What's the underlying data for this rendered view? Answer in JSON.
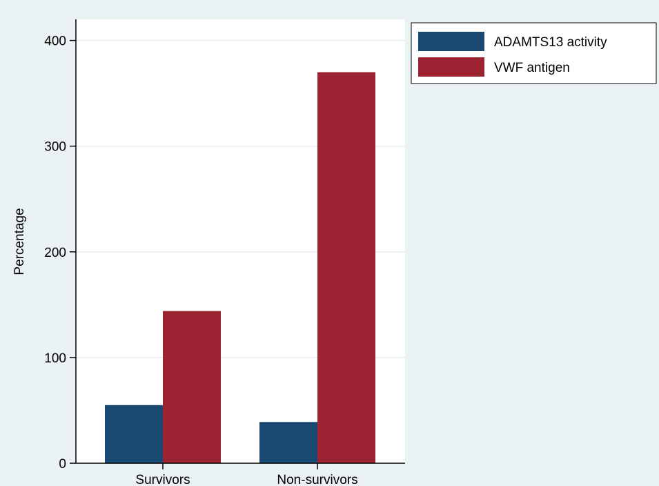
{
  "chart_data": {
    "type": "bar",
    "categories": [
      "Survivors",
      "Non-survivors"
    ],
    "series": [
      {
        "name": "ADAMTS13 activity",
        "values": [
          55,
          39
        ],
        "color": "#1a4a72"
      },
      {
        "name": "VWF antigen",
        "values": [
          144,
          370
        ],
        "color": "#9c2432"
      }
    ],
    "ylabel": "Percentage",
    "xlabel": "",
    "ylim": [
      0,
      420
    ],
    "yticks": [
      0,
      100,
      200,
      300,
      400
    ],
    "grid": true,
    "legend": "top-right"
  },
  "colors": {
    "background": "#eaf2f3",
    "plot_background": "#ffffff",
    "gridline": "#e9eff0"
  }
}
